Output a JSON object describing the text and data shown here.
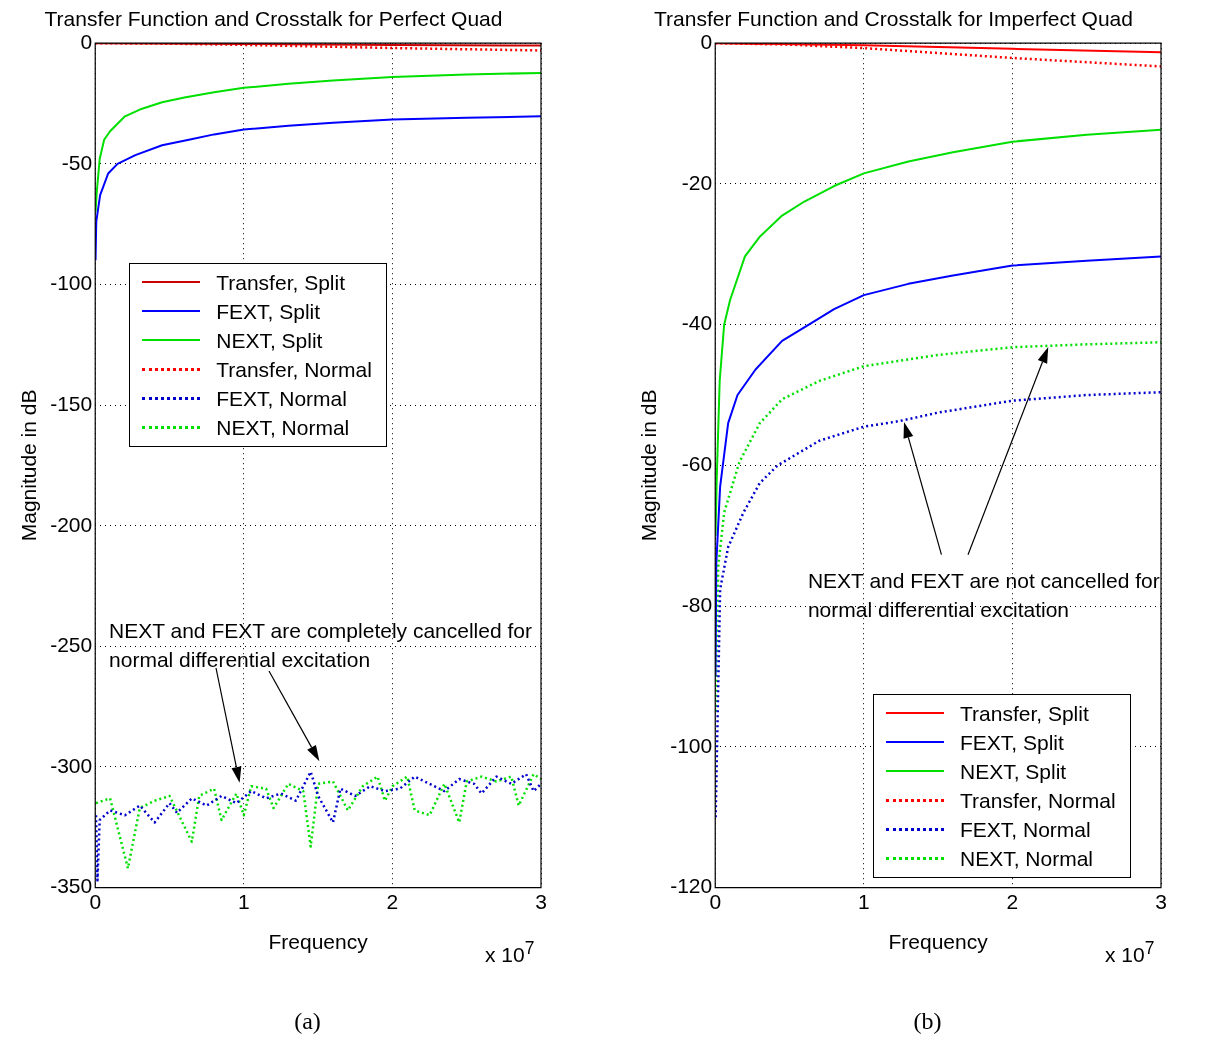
{
  "chart_data": [
    {
      "type": "line",
      "title": "Transfer Function and Crosstalk for Perfect Quad",
      "xlabel": "Frequency",
      "ylabel": "Magnitude in dB",
      "xlim": [
        0,
        3
      ],
      "xticks": [
        0,
        1,
        2,
        3
      ],
      "ylim": [
        -350,
        0
      ],
      "yticks": [
        -350,
        -300,
        -250,
        -200,
        -150,
        -100,
        -50,
        0
      ],
      "grid": true,
      "legend": "left",
      "marker": "none",
      "annotations": [
        "NEXT and FEXT are completely cancelled for\nnormal differential excitation",
        "x 10$^{7}$",
        "(a)"
      ],
      "series": [
        {
          "name": "Transfer, Split",
          "color": "#cc0000",
          "line_style": "solid",
          "x": [
            0,
            1,
            2,
            3
          ],
          "values": [
            0,
            -0.3,
            -0.7,
            -1
          ]
        },
        {
          "name": "FEXT, Split",
          "color": "#0000ff",
          "line_style": "solid",
          "x": [
            0.002,
            0.007,
            0.033,
            0.087,
            0.15,
            0.27,
            0.45,
            0.63,
            0.8,
            1,
            1.3,
            1.6,
            2,
            2.5,
            3
          ],
          "values": [
            -90,
            -74,
            -63,
            -54,
            -50,
            -46.4,
            -42.3,
            -40,
            -37.8,
            -35.8,
            -34.2,
            -33,
            -31.6,
            -30.9,
            -30.3
          ]
        },
        {
          "name": "NEXT, Split",
          "color": "#00e000",
          "line_style": "solid",
          "x": [
            0.002,
            0.01,
            0.03,
            0.06,
            0.1,
            0.2,
            0.3,
            0.45,
            0.6,
            0.8,
            1,
            1.3,
            1.6,
            2,
            2.5,
            3
          ],
          "values": [
            -70,
            -62,
            -48,
            -40,
            -36.5,
            -30.3,
            -27.5,
            -24.5,
            -22.5,
            -20.3,
            -18.5,
            -16.8,
            -15.5,
            -14,
            -13,
            -12.3
          ]
        },
        {
          "name": "Transfer, Normal",
          "color": "#ff0000",
          "line_style": "dotted",
          "x": [
            0,
            0.5,
            1,
            2,
            3
          ],
          "values": [
            0,
            -0.2,
            -0.7,
            -2,
            -3
          ]
        },
        {
          "name": "FEXT, Normal",
          "color": "#0000cc",
          "line_style": "dotted",
          "x": [
            0.005,
            0.015,
            0.03,
            0.1,
            0.2,
            0.3,
            0.4,
            0.5,
            0.55,
            0.65,
            0.75,
            0.85,
            0.95,
            1.05,
            1.15,
            1.25,
            1.35,
            1.45,
            1.5,
            1.6,
            1.65,
            1.75,
            1.85,
            1.95,
            2.05,
            2.15,
            2.25,
            2.35,
            2.45,
            2.55,
            2.6,
            2.7,
            2.8,
            2.9,
            2.95,
            3
          ],
          "values": [
            -320,
            -347,
            -322,
            -318,
            -320,
            -316,
            -323,
            -315,
            -319,
            -313,
            -316,
            -312,
            -315,
            -310,
            -313,
            -311,
            -314,
            -302,
            -312,
            -323,
            -309,
            -312,
            -308,
            -310,
            -309,
            -304,
            -307,
            -310,
            -305,
            -307,
            -311,
            -304,
            -307,
            -303,
            -310,
            -307
          ]
        },
        {
          "name": "NEXT, Normal",
          "color": "#00e000",
          "line_style": "dotted",
          "x": [
            0.005,
            0.1,
            0.22,
            0.3,
            0.4,
            0.5,
            0.65,
            0.7,
            0.8,
            0.85,
            0.95,
            1,
            1.05,
            1.15,
            1.2,
            1.3,
            1.4,
            1.45,
            1.5,
            1.6,
            1.7,
            1.8,
            1.9,
            1.95,
            2,
            2.1,
            2.15,
            2.25,
            2.35,
            2.45,
            2.5,
            2.6,
            2.7,
            2.8,
            2.85,
            2.95,
            3
          ],
          "values": [
            -315,
            -313,
            -342,
            -317,
            -314,
            -312,
            -331,
            -312,
            -309,
            -322,
            -311,
            -320,
            -308,
            -309,
            -317,
            -307,
            -310,
            -333,
            -307,
            -306,
            -318,
            -308,
            -304,
            -314,
            -308,
            -304,
            -318,
            -320,
            -307,
            -323,
            -306,
            -304,
            -306,
            -304,
            -316,
            -303,
            -305
          ]
        }
      ]
    },
    {
      "type": "line",
      "title": "Transfer Function and Crosstalk for Imperfect Quad",
      "xlabel": "Frequency",
      "ylabel": "Magnitude in dB",
      "xlim": [
        0,
        3
      ],
      "xticks": [
        0,
        1,
        2,
        3
      ],
      "ylim": [
        -120,
        0
      ],
      "yticks": [
        -120,
        -100,
        -80,
        -60,
        -40,
        -20,
        0
      ],
      "grid": true,
      "legend": "bottom right",
      "marker": "none",
      "annotations": [
        "NEXT and FEXT are not cancelled for\nnormal differential excitation",
        "x 10$^{7}$",
        "(b)"
      ],
      "series": [
        {
          "name": "Transfer, Split",
          "color": "#ff0000",
          "line_style": "solid",
          "x": [
            0,
            1,
            2,
            3
          ],
          "values": [
            0,
            -0.3,
            -0.8,
            -1.3
          ]
        },
        {
          "name": "FEXT, Split",
          "color": "#0000ff",
          "line_style": "solid",
          "x": [
            0.002,
            0.007,
            0.033,
            0.087,
            0.15,
            0.27,
            0.45,
            0.63,
            0.8,
            1,
            1.3,
            1.6,
            2,
            2.5,
            3
          ],
          "values": [
            -90,
            -74,
            -63,
            -54,
            -50,
            -46.4,
            -42.3,
            -40,
            -37.8,
            -35.8,
            -34.2,
            -33,
            -31.6,
            -30.9,
            -30.3
          ]
        },
        {
          "name": "NEXT, Split",
          "color": "#00e000",
          "line_style": "solid",
          "x": [
            0.002,
            0.01,
            0.03,
            0.06,
            0.1,
            0.2,
            0.3,
            0.45,
            0.6,
            0.8,
            1,
            1.3,
            1.6,
            2,
            2.5,
            3
          ],
          "values": [
            -70,
            -62,
            -48,
            -40,
            -36.5,
            -30.3,
            -27.5,
            -24.5,
            -22.5,
            -20.3,
            -18.5,
            -16.8,
            -15.5,
            -14,
            -13,
            -12.3
          ]
        },
        {
          "name": "Transfer, Normal",
          "color": "#ff0000",
          "line_style": "dotted",
          "x": [
            0,
            0.5,
            1,
            2,
            3
          ],
          "values": [
            0,
            -0.2,
            -0.7,
            -2.1,
            -3.3
          ]
        },
        {
          "name": "FEXT, Normal",
          "color": "#0000cc",
          "line_style": "dotted",
          "x": [
            0.003,
            0.033,
            0.087,
            0.19,
            0.3,
            0.42,
            0.7,
            1,
            1.24,
            1.5,
            2,
            2.5,
            3
          ],
          "values": [
            -110,
            -77.6,
            -71.6,
            -66.7,
            -62.5,
            -60,
            -56.5,
            -54.5,
            -53.7,
            -52.5,
            -50.8,
            -50,
            -49.6
          ]
        },
        {
          "name": "NEXT, Normal",
          "color": "#00e000",
          "line_style": "dotted",
          "x": [
            0.003,
            0.02,
            0.06,
            0.163,
            0.3,
            0.45,
            0.7,
            1,
            1.5,
            2,
            2.5,
            3
          ],
          "values": [
            -95,
            -74.4,
            -66.7,
            -59.5,
            -54,
            -50.6,
            -48,
            -45.9,
            -44.3,
            -43.2,
            -42.8,
            -42.5
          ]
        }
      ]
    }
  ]
}
